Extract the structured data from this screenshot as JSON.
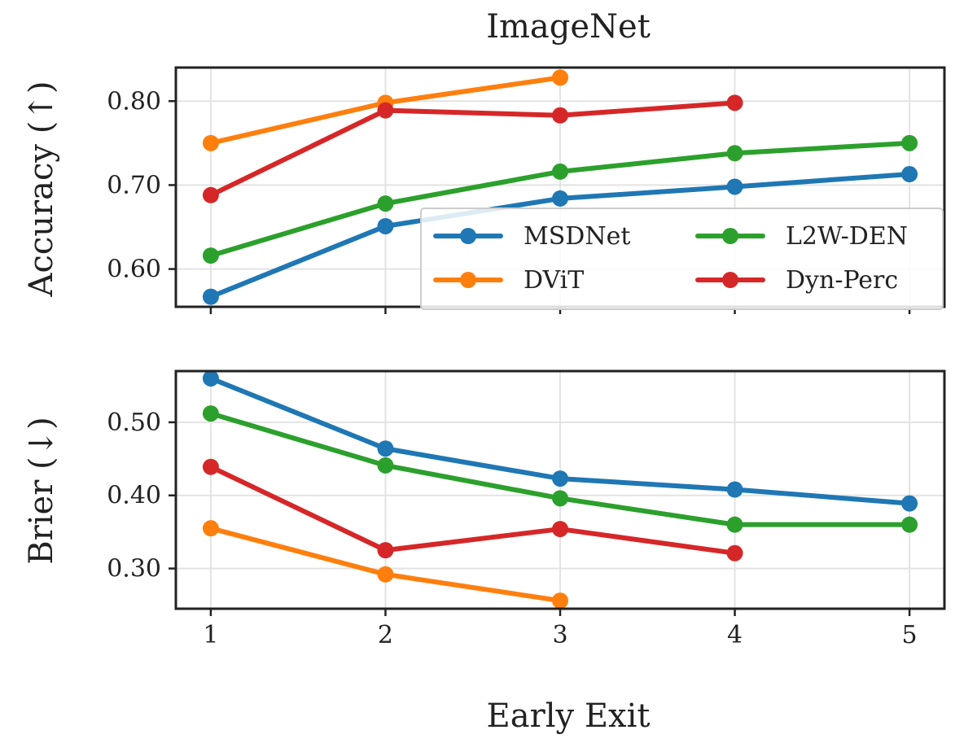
{
  "chart_data": [
    {
      "type": "line",
      "panel": "top",
      "title": "ImageNet",
      "xlabel": "",
      "ylabel": "Accuracy (↑)",
      "x": [
        1,
        2,
        3,
        4,
        5
      ],
      "xlim": [
        0.8,
        5.2
      ],
      "ylim": [
        0.555,
        0.84
      ],
      "yticks": [
        0.6,
        0.7,
        0.8
      ],
      "ytick_labels": [
        "0.60",
        "0.70",
        "0.80"
      ],
      "grid": true,
      "legend": {
        "placement": "lower-right",
        "columns": 2
      },
      "series": [
        {
          "name": "MSDNet",
          "color": "#1f77b4",
          "x": [
            1,
            2,
            3,
            4,
            5
          ],
          "y": [
            0.567,
            0.651,
            0.684,
            0.698,
            0.713
          ]
        },
        {
          "name": "DViT",
          "color": "#ff7f0e",
          "x": [
            1,
            2,
            3
          ],
          "y": [
            0.75,
            0.798,
            0.828
          ]
        },
        {
          "name": "L2W-DEN",
          "color": "#2ca02c",
          "x": [
            1,
            2,
            3,
            4,
            5
          ],
          "y": [
            0.616,
            0.678,
            0.716,
            0.738,
            0.75
          ]
        },
        {
          "name": "Dyn-Perc",
          "color": "#d62728",
          "x": [
            1,
            2,
            3,
            4
          ],
          "y": [
            0.688,
            0.789,
            0.783,
            0.798
          ]
        }
      ]
    },
    {
      "type": "line",
      "panel": "bottom",
      "title": "",
      "xlabel": "Early Exit",
      "ylabel": "Brier (↓)",
      "x": [
        1,
        2,
        3,
        4,
        5
      ],
      "xticks": [
        1,
        2,
        3,
        4,
        5
      ],
      "xtick_labels": [
        "1",
        "2",
        "3",
        "4",
        "5"
      ],
      "xlim": [
        0.8,
        5.2
      ],
      "ylim": [
        0.245,
        0.57
      ],
      "yticks": [
        0.3,
        0.4,
        0.5
      ],
      "ytick_labels": [
        "0.30",
        "0.40",
        "0.50"
      ],
      "grid": true,
      "series": [
        {
          "name": "MSDNet",
          "color": "#1f77b4",
          "x": [
            1,
            2,
            3,
            4,
            5
          ],
          "y": [
            0.56,
            0.464,
            0.423,
            0.408,
            0.389
          ]
        },
        {
          "name": "DViT",
          "color": "#ff7f0e",
          "x": [
            1,
            2,
            3
          ],
          "y": [
            0.355,
            0.292,
            0.256
          ]
        },
        {
          "name": "L2W-DEN",
          "color": "#2ca02c",
          "x": [
            1,
            2,
            3,
            4,
            5
          ],
          "y": [
            0.512,
            0.441,
            0.396,
            0.36,
            0.36
          ]
        },
        {
          "name": "Dyn-Perc",
          "color": "#d62728",
          "x": [
            1,
            2,
            3,
            4
          ],
          "y": [
            0.439,
            0.325,
            0.354,
            0.321
          ]
        }
      ]
    }
  ]
}
